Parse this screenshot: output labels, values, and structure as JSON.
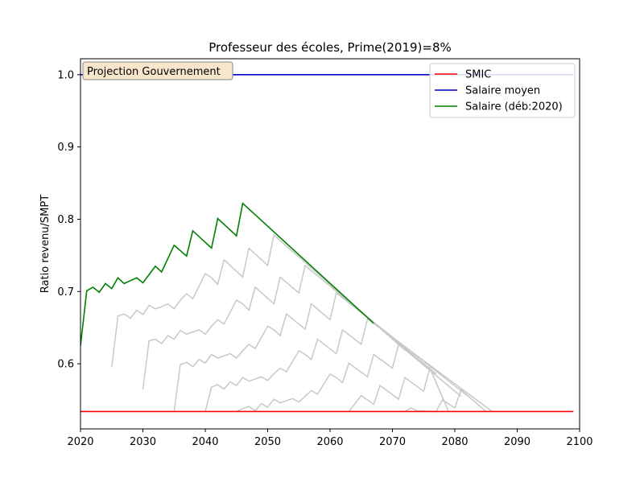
{
  "chart_data": {
    "type": "line",
    "title": "Professeur des écoles, Prime(2019)=8%",
    "xlabel": "",
    "ylabel": "Ratio revenu/SMPT",
    "xlim": [
      2020,
      2100
    ],
    "ylim": [
      0.51,
      1.022
    ],
    "xticks": [
      2020,
      2030,
      2040,
      2050,
      2060,
      2070,
      2080,
      2090,
      2100
    ],
    "yticks": [
      0.6,
      0.7,
      0.8,
      0.9,
      1.0
    ],
    "grid": false,
    "legend_position": "top-right",
    "annotation": "Projection Gouvernement",
    "colors": {
      "smic": "#ff0000",
      "mean": "#0000cc",
      "career": "#008000",
      "other": "#c8c8c8"
    },
    "series": [
      {
        "name": "SMIC",
        "x": [
          2020,
          2099
        ],
        "y": [
          0.534,
          0.534
        ]
      },
      {
        "name": "Salaire moyen",
        "x": [
          2020,
          2099
        ],
        "y": [
          1.0,
          1.0
        ]
      },
      {
        "name": "Salaire (déb:2020)",
        "x": [
          2020,
          2021,
          2022,
          2023,
          2024,
          2025,
          2026,
          2027,
          2028,
          2029,
          2030,
          2032,
          2033,
          2035,
          2037,
          2038,
          2041,
          2042,
          2045,
          2046,
          2067
        ],
        "y": [
          0.625,
          0.701,
          0.706,
          0.699,
          0.711,
          0.704,
          0.719,
          0.711,
          0.715,
          0.719,
          0.712,
          0.735,
          0.727,
          0.764,
          0.749,
          0.784,
          0.76,
          0.801,
          0.777,
          0.822,
          0.656
        ]
      }
    ],
    "other_careers": [
      {
        "x": [
          2025,
          2026,
          2027,
          2028,
          2029,
          2030,
          2031,
          2032,
          2033,
          2034,
          2035,
          2036,
          2037,
          2038,
          2040,
          2041,
          2042,
          2043,
          2046,
          2047,
          2050,
          2051,
          2072
        ],
        "y": [
          0.595,
          0.666,
          0.669,
          0.663,
          0.674,
          0.668,
          0.681,
          0.676,
          0.679,
          0.683,
          0.676,
          0.688,
          0.697,
          0.69,
          0.725,
          0.719,
          0.71,
          0.744,
          0.72,
          0.76,
          0.736,
          0.778,
          0.619
        ]
      },
      {
        "x": [
          2030,
          2031,
          2032,
          2033,
          2034,
          2035,
          2036,
          2037,
          2038,
          2039,
          2040,
          2041,
          2042,
          2043,
          2045,
          2046,
          2047,
          2048,
          2051,
          2052,
          2055,
          2056,
          2077
        ],
        "y": [
          0.565,
          0.632,
          0.634,
          0.628,
          0.639,
          0.634,
          0.646,
          0.641,
          0.644,
          0.647,
          0.641,
          0.652,
          0.661,
          0.655,
          0.688,
          0.683,
          0.674,
          0.706,
          0.683,
          0.72,
          0.698,
          0.736,
          0.586
        ]
      },
      {
        "x": [
          2035,
          2036,
          2037,
          2038,
          2039,
          2040,
          2041,
          2042,
          2043,
          2044,
          2045,
          2046,
          2047,
          2048,
          2050,
          2051,
          2052,
          2053,
          2056,
          2057,
          2060,
          2061,
          2082
        ],
        "y": [
          0.534,
          0.599,
          0.602,
          0.596,
          0.606,
          0.601,
          0.613,
          0.608,
          0.611,
          0.614,
          0.608,
          0.618,
          0.627,
          0.621,
          0.652,
          0.647,
          0.639,
          0.669,
          0.648,
          0.683,
          0.661,
          0.698,
          0.556
        ]
      },
      {
        "x": [
          2040,
          2041,
          2042,
          2043,
          2044,
          2045,
          2046,
          2047,
          2048,
          2049,
          2050,
          2051,
          2052,
          2053,
          2055,
          2056,
          2057,
          2058,
          2061,
          2062,
          2065,
          2066,
          2086
        ],
        "y": [
          0.534,
          0.568,
          0.571,
          0.565,
          0.575,
          0.57,
          0.581,
          0.576,
          0.579,
          0.582,
          0.577,
          0.586,
          0.594,
          0.589,
          0.618,
          0.613,
          0.606,
          0.634,
          0.614,
          0.647,
          0.627,
          0.662,
          0.534
        ]
      },
      {
        "x": [
          2045,
          2046,
          2047,
          2048,
          2049,
          2050,
          2051,
          2052,
          2053,
          2054,
          2055,
          2056,
          2057,
          2058,
          2060,
          2061,
          2062,
          2063,
          2066,
          2067,
          2070,
          2071,
          2081
        ],
        "y": [
          0.534,
          0.538,
          0.541,
          0.535,
          0.545,
          0.54,
          0.551,
          0.546,
          0.549,
          0.552,
          0.547,
          0.555,
          0.563,
          0.558,
          0.586,
          0.581,
          0.574,
          0.601,
          0.582,
          0.613,
          0.594,
          0.627,
          0.555
        ]
      },
      {
        "x": [
          2063,
          2065,
          2066,
          2067,
          2068,
          2071,
          2072,
          2075,
          2076,
          2079
        ],
        "y": [
          0.534,
          0.556,
          0.55,
          0.544,
          0.57,
          0.551,
          0.581,
          0.562,
          0.594,
          0.534
        ]
      },
      {
        "x": [
          2072,
          2073,
          2074,
          2077,
          2078,
          2080,
          2081,
          2085
        ],
        "y": [
          0.534,
          0.539,
          0.535,
          0.534,
          0.55,
          0.539,
          0.564,
          0.534
        ]
      }
    ]
  }
}
